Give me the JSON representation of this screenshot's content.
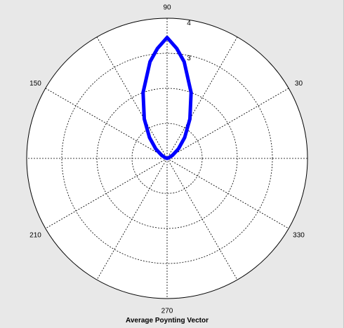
{
  "chart_data": {
    "type": "polar-line",
    "title": "Average Poynting Vector",
    "r_max": 4,
    "r_ticks": [
      1,
      2,
      3,
      4
    ],
    "r_tick_labels": [
      "",
      "",
      "3",
      "4"
    ],
    "angle_ticks_deg": [
      0,
      30,
      60,
      90,
      120,
      150,
      180,
      210,
      240,
      270,
      300,
      330
    ],
    "angle_tick_labels": [
      "",
      "30",
      "",
      "90",
      "",
      "150",
      "",
      "210",
      "",
      "270",
      "",
      "330"
    ],
    "grid": true,
    "series": [
      {
        "color": "#0000ff",
        "peak_r": 3.45,
        "peak_theta_deg": 90,
        "theta_deg": [
          20,
          30,
          40,
          50,
          60,
          70,
          80,
          85,
          90,
          95,
          100,
          110,
          120,
          130,
          140,
          150,
          160
        ],
        "r": [
          0.05,
          0.18,
          0.42,
          0.78,
          1.3,
          2.0,
          2.8,
          3.15,
          3.45,
          3.15,
          2.8,
          2.0,
          1.3,
          0.78,
          0.42,
          0.18,
          0.05
        ]
      }
    ]
  },
  "colors": {
    "figure_background": "#e8e8e8",
    "plot_background": "#ffffff",
    "grid_line": "#000000",
    "series_line": "#0000ff"
  }
}
